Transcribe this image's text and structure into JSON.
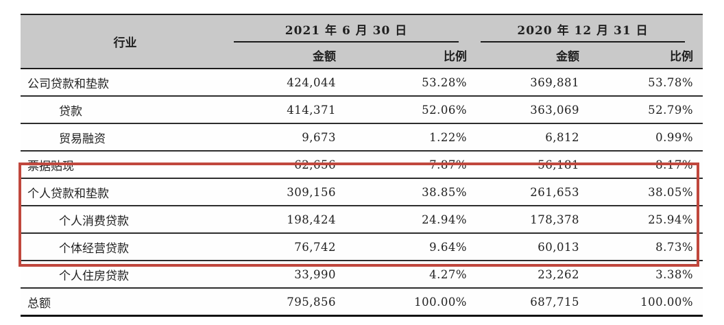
{
  "table": {
    "corner_header": "行业",
    "periods": [
      {
        "date": "2021 年 6 月 30 日",
        "amount_label": "金额",
        "ratio_label": "比例"
      },
      {
        "date": "2020 年 12 月 31 日",
        "amount_label": "金额",
        "ratio_label": "比例"
      }
    ],
    "rows": [
      {
        "label": "公司贷款和垫款",
        "indent": false,
        "highlighted": false,
        "values": [
          "424,044",
          "53.28%",
          "369,881",
          "53.78%"
        ]
      },
      {
        "label": "贷款",
        "indent": true,
        "highlighted": false,
        "values": [
          "414,371",
          "52.06%",
          "363,069",
          "52.79%"
        ]
      },
      {
        "label": "贸易融资",
        "indent": true,
        "highlighted": false,
        "values": [
          "9,673",
          "1.22%",
          "6,812",
          "0.99%"
        ]
      },
      {
        "label": "票据贴现",
        "indent": false,
        "highlighted": false,
        "values": [
          "62,656",
          "7.87%",
          "56,181",
          "8.17%"
        ]
      },
      {
        "label": "个人贷款和垫款",
        "indent": false,
        "highlighted": true,
        "values": [
          "309,156",
          "38.85%",
          "261,653",
          "38.05%"
        ]
      },
      {
        "label": "个人消费贷款",
        "indent": true,
        "highlighted": true,
        "values": [
          "198,424",
          "24.94%",
          "178,378",
          "25.94%"
        ]
      },
      {
        "label": "个体经营贷款",
        "indent": true,
        "highlighted": true,
        "values": [
          "76,742",
          "9.64%",
          "60,013",
          "8.73%"
        ]
      },
      {
        "label": "个人住房贷款",
        "indent": true,
        "highlighted": true,
        "values": [
          "33,990",
          "4.27%",
          "23,262",
          "3.38%"
        ]
      },
      {
        "label": "总额",
        "indent": false,
        "highlighted": false,
        "values": [
          "795,856",
          "100.00%",
          "687,715",
          "100.00%"
        ]
      }
    ],
    "highlight": {
      "color": "#c0473d",
      "covers_rows": [
        "个人贷款和垫款",
        "个人消费贷款",
        "个体经营贷款",
        "个人住房贷款"
      ]
    },
    "header_bg": "#c9c9c9"
  }
}
